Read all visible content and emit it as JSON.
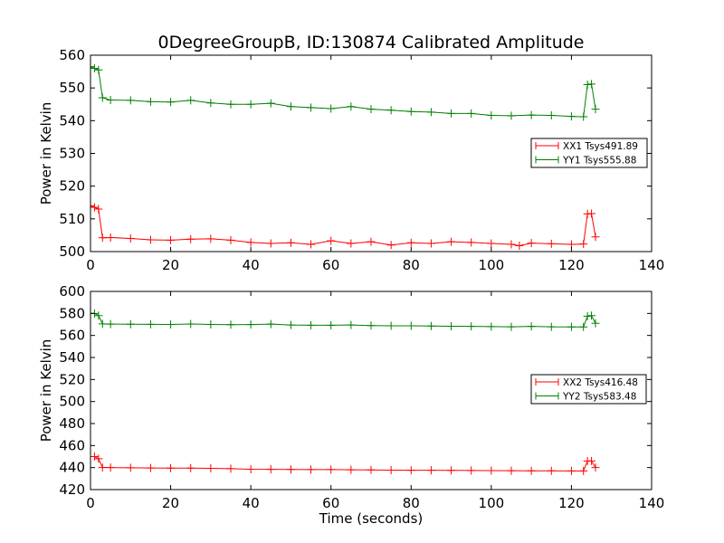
{
  "figure": {
    "title": "0DegreeGroupB, ID:130874 Calibrated Amplitude",
    "xlabel": "Time (seconds)"
  },
  "colors": {
    "xx": "#ff0000",
    "yy": "#008000",
    "axes": "#000000",
    "background": "#ffffff"
  },
  "chart_data": [
    {
      "type": "line",
      "title": "0DegreeGroupB, ID:130874 Calibrated Amplitude",
      "xlabel": "",
      "ylabel": "Power in Kelvin",
      "xlim": [
        0,
        140
      ],
      "ylim": [
        500,
        560
      ],
      "xticks": [
        "0",
        "20",
        "40",
        "60",
        "80",
        "100",
        "120",
        "140"
      ],
      "yticks": [
        "500",
        "510",
        "520",
        "530",
        "540",
        "550",
        "560"
      ],
      "legend_position": "center-right",
      "grid": false,
      "marker": "plus",
      "series": [
        {
          "name": "XX1 Tsys491.89",
          "color": "#ff0000",
          "points": [
            [
              0,
              514
            ],
            [
              1,
              513.5
            ],
            [
              2,
              513
            ],
            [
              3,
              504.2
            ],
            [
              5,
              504.3
            ],
            [
              10,
              504
            ],
            [
              15,
              503.6
            ],
            [
              20,
              503.5
            ],
            [
              25,
              503.8
            ],
            [
              30,
              503.9
            ],
            [
              35,
              503.5
            ],
            [
              40,
              502.8
            ],
            [
              45,
              502.5
            ],
            [
              50,
              502.7
            ],
            [
              55,
              502.2
            ],
            [
              60,
              503.3
            ],
            [
              65,
              502.5
            ],
            [
              70,
              503
            ],
            [
              75,
              502
            ],
            [
              80,
              502.7
            ],
            [
              85,
              502.5
            ],
            [
              90,
              503
            ],
            [
              95,
              502.8
            ],
            [
              100,
              502.5
            ],
            [
              105,
              502.2
            ],
            [
              107,
              501.8
            ],
            [
              110,
              502.6
            ],
            [
              115,
              502.4
            ],
            [
              120,
              502.2
            ],
            [
              123,
              502.3
            ],
            [
              124,
              511.5
            ],
            [
              125,
              511.6
            ],
            [
              126,
              504.5
            ]
          ]
        },
        {
          "name": "YY1 Tsys555.88",
          "color": "#008000",
          "points": [
            [
              0,
              556.5
            ],
            [
              1,
              556
            ],
            [
              2,
              555.5
            ],
            [
              3,
              547
            ],
            [
              5,
              546.3
            ],
            [
              10,
              546.2
            ],
            [
              15,
              545.8
            ],
            [
              20,
              545.7
            ],
            [
              25,
              546.2
            ],
            [
              30,
              545.4
            ],
            [
              35,
              545
            ],
            [
              40,
              545
            ],
            [
              45,
              545.3
            ],
            [
              50,
              544.3
            ],
            [
              55,
              544
            ],
            [
              60,
              543.7
            ],
            [
              65,
              544.3
            ],
            [
              70,
              543.5
            ],
            [
              75,
              543.2
            ],
            [
              80,
              542.8
            ],
            [
              85,
              542.6
            ],
            [
              90,
              542.2
            ],
            [
              95,
              542.2
            ],
            [
              100,
              541.6
            ],
            [
              105,
              541.5
            ],
            [
              110,
              541.7
            ],
            [
              115,
              541.6
            ],
            [
              120,
              541.3
            ],
            [
              123,
              541.2
            ],
            [
              124,
              551
            ],
            [
              125,
              551.2
            ],
            [
              126,
              543.5
            ]
          ]
        }
      ]
    },
    {
      "type": "line",
      "title": "",
      "xlabel": "Time (seconds)",
      "ylabel": "Power in Kelvin",
      "xlim": [
        0,
        140
      ],
      "ylim": [
        420,
        600
      ],
      "xticks": [
        "0",
        "20",
        "40",
        "60",
        "80",
        "100",
        "120",
        "140"
      ],
      "yticks": [
        "420",
        "440",
        "460",
        "480",
        "500",
        "520",
        "540",
        "560",
        "580",
        "600"
      ],
      "legend_position": "center-right",
      "grid": false,
      "marker": "plus",
      "series": [
        {
          "name": "XX2 Tsys416.48",
          "color": "#ff0000",
          "points": [
            [
              0,
              450
            ],
            [
              1,
              450
            ],
            [
              2,
              448
            ],
            [
              3,
              440
            ],
            [
              5,
              440
            ],
            [
              10,
              439.8
            ],
            [
              15,
              439.6
            ],
            [
              20,
              439.5
            ],
            [
              25,
              439.5
            ],
            [
              30,
              439.3
            ],
            [
              35,
              439
            ],
            [
              40,
              438.5
            ],
            [
              45,
              438.4
            ],
            [
              50,
              438.3
            ],
            [
              55,
              438.2
            ],
            [
              60,
              438.2
            ],
            [
              65,
              438
            ],
            [
              70,
              437.9
            ],
            [
              75,
              437.7
            ],
            [
              80,
              437.6
            ],
            [
              85,
              437.6
            ],
            [
              90,
              437.5
            ],
            [
              95,
              437.4
            ],
            [
              100,
              437.3
            ],
            [
              105,
              437.2
            ],
            [
              110,
              437.1
            ],
            [
              115,
              437.1
            ],
            [
              120,
              437
            ],
            [
              123,
              437
            ],
            [
              124,
              446
            ],
            [
              125,
              446
            ],
            [
              126,
              440
            ]
          ]
        },
        {
          "name": "YY2 Tsys583.48",
          "color": "#008000",
          "points": [
            [
              0,
              580
            ],
            [
              1,
              580
            ],
            [
              2,
              578
            ],
            [
              3,
              570.5
            ],
            [
              5,
              570.3
            ],
            [
              10,
              570.2
            ],
            [
              15,
              570.1
            ],
            [
              20,
              570
            ],
            [
              25,
              570.4
            ],
            [
              30,
              570
            ],
            [
              35,
              569.8
            ],
            [
              40,
              569.9
            ],
            [
              45,
              570.3
            ],
            [
              50,
              569.5
            ],
            [
              55,
              569.3
            ],
            [
              60,
              569.3
            ],
            [
              65,
              569.5
            ],
            [
              70,
              569
            ],
            [
              75,
              568.8
            ],
            [
              80,
              568.8
            ],
            [
              85,
              568.6
            ],
            [
              90,
              568.4
            ],
            [
              95,
              568.3
            ],
            [
              100,
              568
            ],
            [
              105,
              567.8
            ],
            [
              110,
              568.3
            ],
            [
              115,
              567.8
            ],
            [
              120,
              567.7
            ],
            [
              123,
              567.7
            ],
            [
              124,
              577.5
            ],
            [
              125,
              578
            ],
            [
              126,
              571
            ]
          ]
        }
      ]
    }
  ]
}
